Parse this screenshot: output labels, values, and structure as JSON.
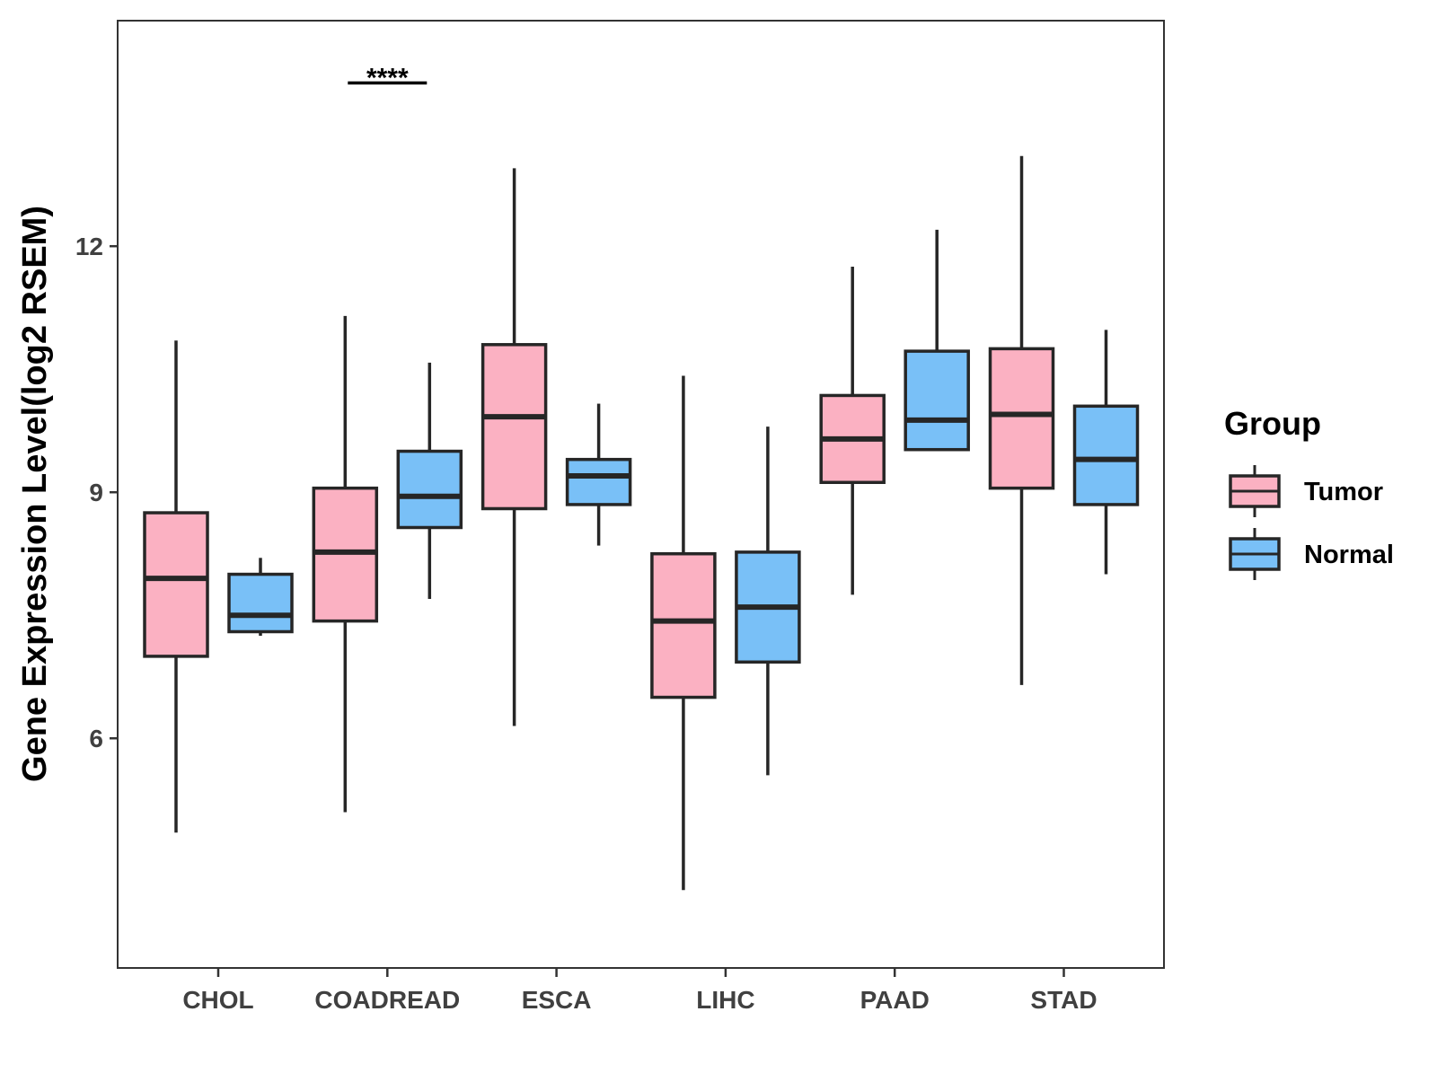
{
  "chart_data": {
    "type": "boxplot",
    "title": "",
    "xlabel": "",
    "ylabel": "Gene Expression Level(log2 RSEM)",
    "categories": [
      "CHOL",
      "COADREAD",
      "ESCA",
      "LIHC",
      "PAAD",
      "STAD"
    ],
    "yticks": [
      6,
      9,
      12
    ],
    "ytick_labels": [
      "6",
      "9",
      "12"
    ],
    "ylim": [
      3.2,
      14.75
    ],
    "grid": false,
    "legend": {
      "title": "Group",
      "position": "right",
      "entries": [
        "Tumor",
        "Normal"
      ]
    },
    "colors": {
      "Tumor": "#FBB1C2",
      "Normal": "#79C0F7",
      "stroke": "#262626",
      "axis": "#333333"
    },
    "series": [
      {
        "name": "Tumor",
        "boxes": [
          {
            "category": "CHOL",
            "min": 4.85,
            "q1": 7.0,
            "median": 7.95,
            "q3": 8.75,
            "max": 10.85
          },
          {
            "category": "COADREAD",
            "min": 5.1,
            "q1": 7.43,
            "median": 8.27,
            "q3": 9.05,
            "max": 11.15
          },
          {
            "category": "ESCA",
            "min": 6.15,
            "q1": 8.8,
            "median": 9.92,
            "q3": 10.8,
            "max": 12.95
          },
          {
            "category": "LIHC",
            "min": 4.15,
            "q1": 6.5,
            "median": 7.43,
            "q3": 8.25,
            "max": 10.42
          },
          {
            "category": "PAAD",
            "min": 7.75,
            "q1": 9.12,
            "median": 9.65,
            "q3": 10.18,
            "max": 11.75
          },
          {
            "category": "STAD",
            "min": 6.65,
            "q1": 9.05,
            "median": 9.95,
            "q3": 10.75,
            "max": 13.1
          }
        ]
      },
      {
        "name": "Normal",
        "boxes": [
          {
            "category": "CHOL",
            "min": 7.25,
            "q1": 7.3,
            "median": 7.5,
            "q3": 8.0,
            "max": 8.2
          },
          {
            "category": "COADREAD",
            "min": 7.7,
            "q1": 8.57,
            "median": 8.95,
            "q3": 9.5,
            "max": 10.58
          },
          {
            "category": "ESCA",
            "min": 8.35,
            "q1": 8.85,
            "median": 9.2,
            "q3": 9.4,
            "max": 10.08
          },
          {
            "category": "LIHC",
            "min": 5.55,
            "q1": 6.93,
            "median": 7.6,
            "q3": 8.27,
            "max": 9.8
          },
          {
            "category": "PAAD",
            "min": 9.52,
            "q1": 9.52,
            "median": 9.88,
            "q3": 10.72,
            "max": 12.2
          },
          {
            "category": "STAD",
            "min": 8.0,
            "q1": 8.85,
            "median": 9.4,
            "q3": 10.05,
            "max": 10.98
          }
        ]
      }
    ],
    "annotations": [
      {
        "category": "COADREAD",
        "text": "****",
        "y": 14.1
      }
    ]
  }
}
